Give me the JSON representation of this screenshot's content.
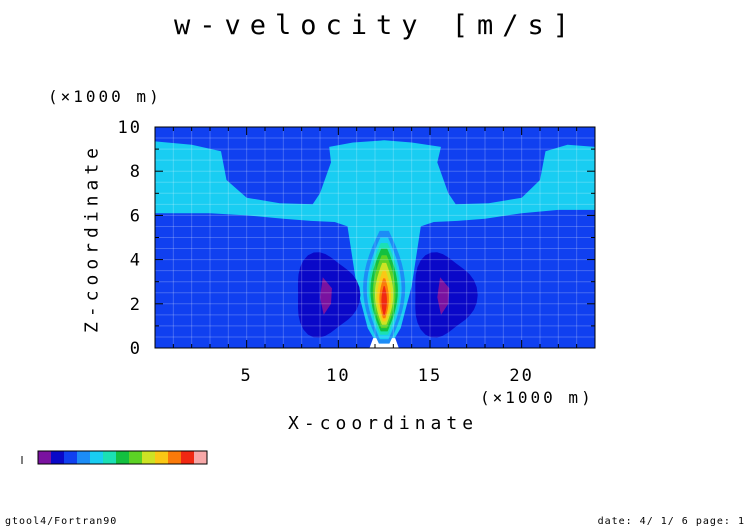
{
  "title": "w-velocity [m/s]",
  "chart_data": {
    "type": "heatmap",
    "title": "w-velocity [m/s]",
    "xlabel": "X-coordinate",
    "ylabel": "Z-coordinate",
    "x_unit": "(×1000 m)",
    "y_unit": "(×1000 m)",
    "xlim": [
      0,
      24
    ],
    "ylim": [
      0,
      10
    ],
    "x_ticks": [
      5,
      10,
      15,
      20
    ],
    "y_ticks": [
      0,
      2,
      4,
      6,
      8,
      10
    ],
    "grid": true,
    "palette": [
      "#7a12a0",
      "#0a08c8",
      "#1040f0",
      "#1c8cf6",
      "#19cdf2",
      "#1be0b4",
      "#13c040",
      "#5cd225",
      "#cde324",
      "#fac815",
      "#fa7a0a",
      "#f02812",
      "#f7a8a8"
    ],
    "fields": {
      "background_level": "#1040f0",
      "upper_band": {
        "color": "#19cdf2",
        "z_range": [
          6.1,
          9.4
        ]
      },
      "updraft_core": {
        "center_x": 12.5,
        "top_z": 5.3,
        "peak_color": "#f02812"
      },
      "downdrafts": [
        {
          "center_x": 9.3,
          "center_z": 2.4,
          "color": "#0a08c8",
          "core_color": "#7a12a0"
        },
        {
          "center_x": 15.7,
          "center_z": 2.4,
          "color": "#0a08c8",
          "core_color": "#7a12a0"
        }
      ]
    }
  },
  "footer": {
    "left": "gtool4/Fortran90",
    "right": "date: 4/ 1/ 6 page: 1"
  }
}
